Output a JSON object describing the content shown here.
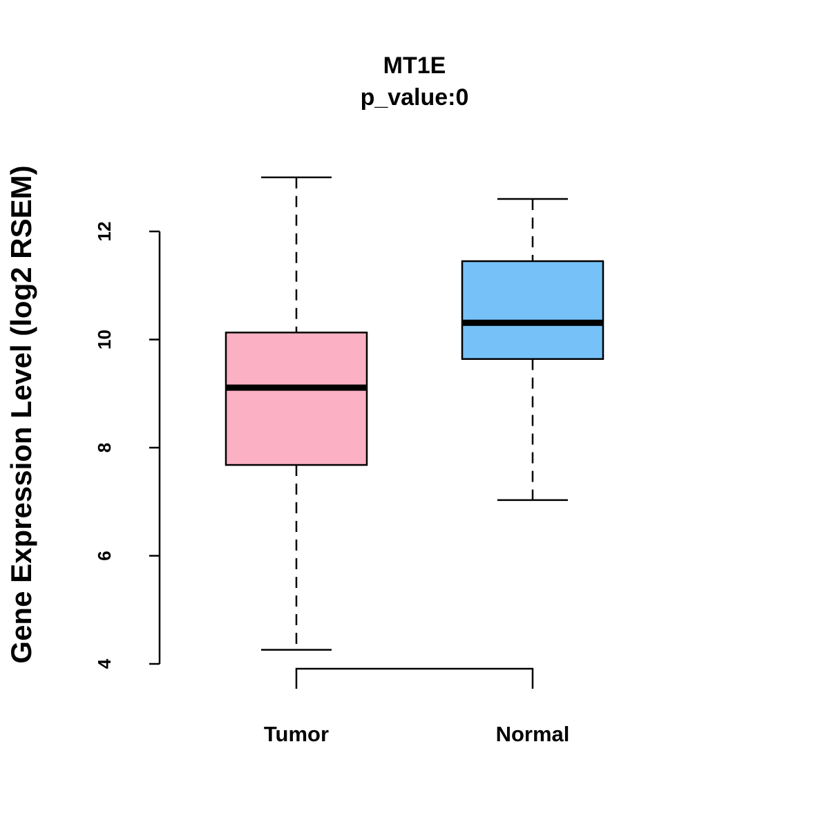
{
  "chart_data": {
    "type": "boxplot",
    "title": "MT1E",
    "subtitle": "p_value:0",
    "xlabel": "",
    "ylabel": "Gene Expression Level (log2 RSEM)",
    "ylim": [
      4,
      12
    ],
    "yticks": [
      4,
      6,
      8,
      10,
      12
    ],
    "grid": false,
    "categories": [
      "Tumor",
      "Normal"
    ],
    "boxes": [
      {
        "name": "Tumor",
        "whisker_low": 4.26,
        "q1": 7.68,
        "median": 9.11,
        "q3": 10.13,
        "whisker_high": 13.0,
        "color": "#FBB1C3"
      },
      {
        "name": "Normal",
        "whisker_low": 7.03,
        "q1": 9.64,
        "median": 10.31,
        "q3": 11.45,
        "whisker_high": 12.6,
        "color": "#76C1F8"
      }
    ],
    "comparison_bracket": [
      "Tumor",
      "Normal"
    ]
  }
}
